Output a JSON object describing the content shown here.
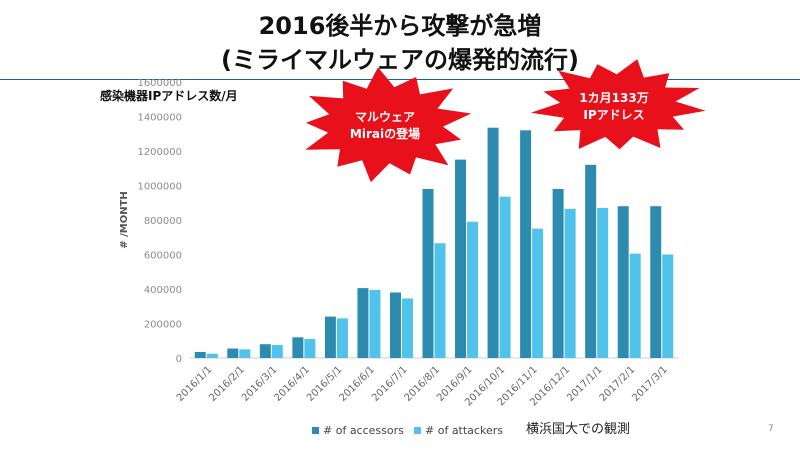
{
  "slide": {
    "title_line1": "2016後半から攻撃が急増",
    "title_line2": "(ミライマルウェアの爆発的流行)",
    "unit_label": "感染機器IPアドレス数/月",
    "source_label": "横浜国大での観測",
    "page_number": "7"
  },
  "callouts": [
    {
      "line1": "マルウェア",
      "line2": "Miraiの登場"
    },
    {
      "line1": "1カ月133万",
      "line2": "IPアドレス"
    }
  ],
  "colors": {
    "accessors": "#2e8bb0",
    "attackers": "#4fc3ea",
    "burst": "#e8101a",
    "rule": "#1f5f8b"
  },
  "chart_data": {
    "type": "bar",
    "categories": [
      "2016/1/1",
      "2016/2/1",
      "2016/3/1",
      "2016/4/1",
      "2016/5/1",
      "2016/6/1",
      "2016/7/1",
      "2016/8/1",
      "2016/9/1",
      "2016/10/1",
      "2016/11/1",
      "2016/12/1",
      "2017/1/1",
      "2017/2/1",
      "2017/3/1"
    ],
    "series": [
      {
        "name": "# of accessors",
        "values": [
          35000,
          55000,
          80000,
          120000,
          240000,
          405000,
          380000,
          980000,
          1150000,
          1335000,
          1320000,
          980000,
          1120000,
          880000,
          880000
        ]
      },
      {
        "name": "# of attackers",
        "values": [
          25000,
          50000,
          75000,
          110000,
          230000,
          395000,
          345000,
          665000,
          790000,
          935000,
          750000,
          865000,
          870000,
          605000,
          600000
        ]
      }
    ],
    "ylabel": "# /MONTH",
    "ylim": [
      0,
      1600000
    ],
    "yticks": [
      0,
      200000,
      400000,
      600000,
      800000,
      1000000,
      1200000,
      1400000,
      1600000
    ],
    "legend_position": "bottom",
    "grid": false
  }
}
